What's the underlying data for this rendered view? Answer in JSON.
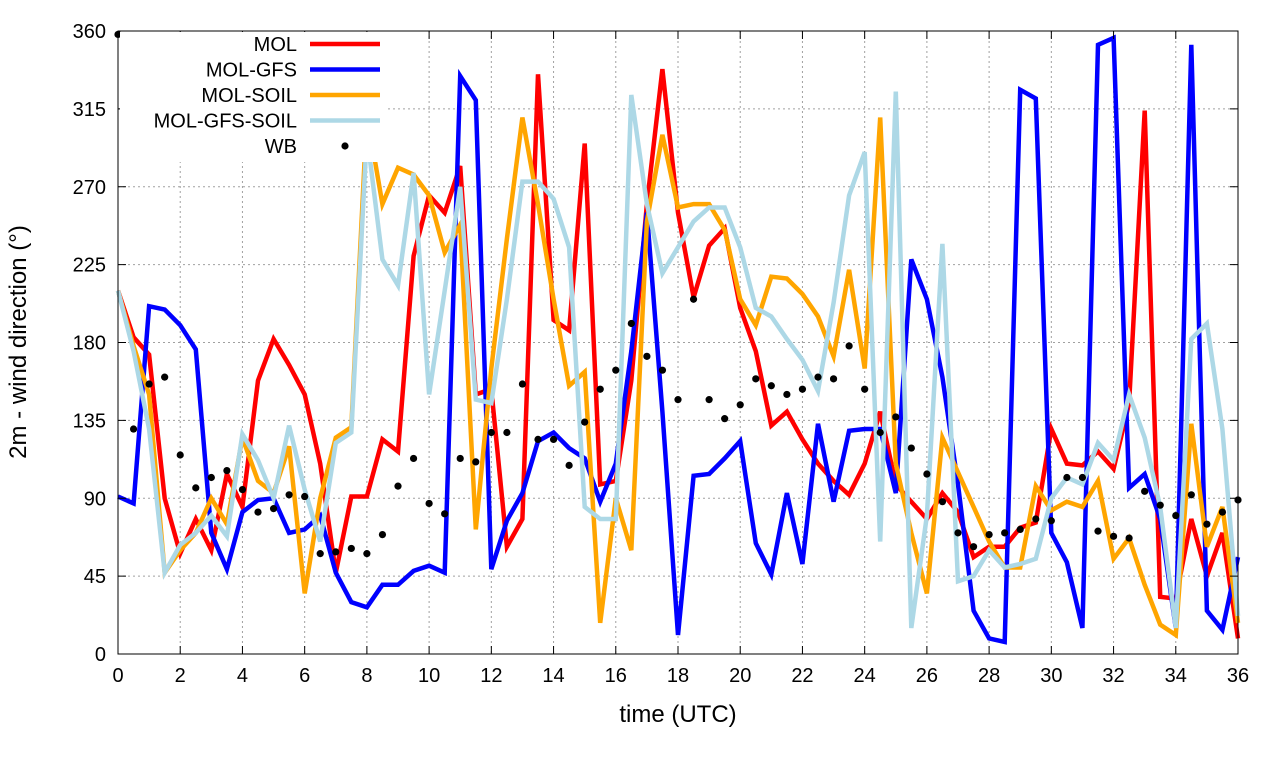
{
  "chart_data": {
    "type": "line",
    "title": "",
    "xlabel": "time (UTC)",
    "ylabel": "2m - wind direction (°)",
    "xlim": [
      0,
      36
    ],
    "ylim": [
      0,
      360
    ],
    "xticks": [
      0,
      2,
      4,
      6,
      8,
      10,
      12,
      14,
      16,
      18,
      20,
      22,
      24,
      26,
      28,
      30,
      32,
      34,
      36
    ],
    "yticks": [
      0,
      45,
      90,
      135,
      180,
      225,
      270,
      315,
      360
    ],
    "grid": true,
    "legend_position": "top-left",
    "x_step": 0.5,
    "series": [
      {
        "name": "MOL",
        "style": "line",
        "color": "#ff0000",
        "values": [
          210,
          183,
          173,
          90,
          58,
          78,
          60,
          104,
          85,
          158,
          182,
          167,
          150,
          110,
          47,
          91,
          91,
          124,
          117,
          230,
          265,
          255,
          282,
          150,
          153,
          62,
          78,
          335,
          193,
          187,
          295,
          98,
          100,
          158,
          260,
          338,
          255,
          206,
          236,
          246,
          200,
          175,
          132,
          140,
          124,
          110,
          100,
          92,
          110,
          140,
          98,
          88,
          78,
          93,
          82,
          56,
          62,
          62,
          73,
          76,
          130,
          110,
          109,
          117,
          107,
          145,
          314,
          33,
          32,
          78,
          45,
          70,
          9
        ]
      },
      {
        "name": "MOL-GFS",
        "style": "line",
        "color": "#0000ff",
        "values": [
          91,
          87,
          201,
          199,
          190,
          176,
          70,
          49,
          82,
          89,
          90,
          70,
          72,
          80,
          47,
          30,
          27,
          40,
          40,
          48,
          51,
          47,
          334,
          320,
          49,
          77,
          93,
          123,
          128,
          119,
          113,
          88,
          110,
          175,
          255,
          140,
          11,
          103,
          104,
          113,
          123,
          64,
          46,
          93,
          52,
          133,
          88,
          129,
          130,
          130,
          93,
          228,
          205,
          160,
          98,
          25,
          9,
          7,
          326,
          321,
          70,
          53,
          15,
          352,
          356,
          96,
          104,
          78,
          15,
          352,
          25,
          14,
          56
        ]
      },
      {
        "name": "MOL-SOIL",
        "style": "line",
        "color": "#ffa500",
        "values": [
          210,
          178,
          150,
          47,
          60,
          70,
          90,
          75,
          125,
          100,
          93,
          120,
          35,
          90,
          125,
          131,
          312,
          260,
          281,
          277,
          265,
          232,
          248,
          72,
          165,
          240,
          310,
          260,
          205,
          155,
          163,
          18,
          90,
          60,
          250,
          300,
          258,
          260,
          260,
          245,
          205,
          190,
          218,
          217,
          208,
          195,
          172,
          222,
          165,
          310,
          110,
          70,
          35,
          125,
          105,
          85,
          65,
          50,
          50,
          97,
          83,
          88,
          85,
          100,
          55,
          67,
          40,
          17,
          11,
          133,
          62,
          85,
          18
        ]
      },
      {
        "name": "MOL-GFS-SOIL",
        "style": "line",
        "color": "#add8e6",
        "values": [
          210,
          175,
          130,
          47,
          63,
          70,
          80,
          68,
          127,
          112,
          90,
          132,
          95,
          65,
          122,
          128,
          300,
          228,
          213,
          278,
          150,
          210,
          270,
          147,
          145,
          205,
          273,
          273,
          263,
          235,
          85,
          78,
          78,
          323,
          260,
          220,
          235,
          250,
          258,
          258,
          235,
          200,
          195,
          182,
          170,
          152,
          203,
          265,
          290,
          65,
          325,
          15,
          80,
          237,
          42,
          45,
          60,
          50,
          52,
          55,
          90,
          102,
          98,
          122,
          112,
          150,
          125,
          85,
          15,
          182,
          191,
          130,
          22
        ]
      },
      {
        "name": "WB",
        "style": "points",
        "color": "#000000",
        "values": [
          358,
          130,
          156,
          160,
          115,
          96,
          102,
          106,
          95,
          82,
          84,
          92,
          91,
          58,
          59,
          61,
          58,
          69,
          97,
          113,
          87,
          81,
          113,
          111,
          128,
          128,
          156,
          124,
          124,
          109,
          134,
          153,
          164,
          191,
          172,
          164,
          147,
          205,
          147,
          136,
          144,
          159,
          155,
          150,
          153,
          160,
          159,
          178,
          153,
          128,
          137,
          119,
          104,
          88,
          70,
          62,
          69,
          70,
          72,
          78,
          77,
          102,
          102,
          71,
          68,
          67,
          94,
          86,
          80,
          92,
          75,
          82,
          89
        ]
      }
    ]
  }
}
